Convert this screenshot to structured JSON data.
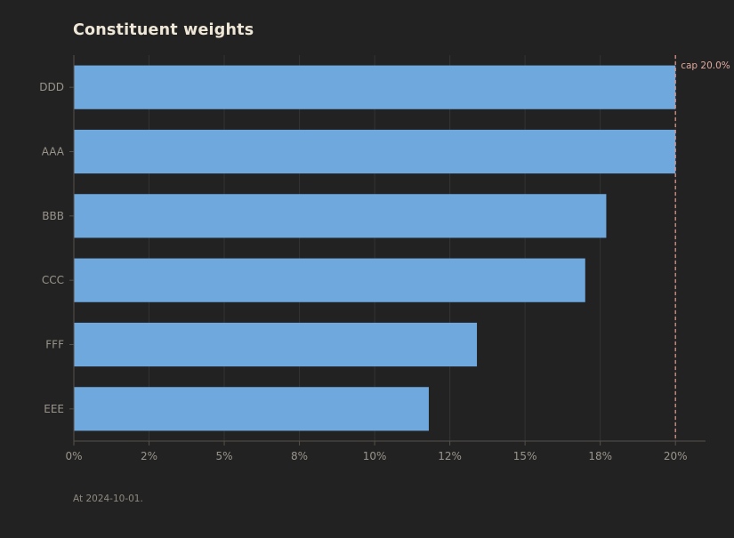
{
  "chart_data": {
    "type": "bar",
    "orientation": "horizontal",
    "title": "Constituent weights",
    "footnote": "At 2024-10-01.",
    "categories": [
      "DDD",
      "AAA",
      "BBB",
      "CCC",
      "FFF",
      "EEE"
    ],
    "values": [
      20.0,
      20.0,
      17.7,
      17.0,
      13.4,
      11.8
    ],
    "xlim": [
      0,
      21
    ],
    "x_ticks": [
      0,
      2.5,
      5,
      7.5,
      10,
      12.5,
      15,
      17.5,
      20
    ],
    "x_tick_labels": [
      "0%",
      "2%",
      "5%",
      "8%",
      "10%",
      "12%",
      "15%",
      "18%",
      "20%"
    ],
    "xlabel": "",
    "ylabel": "",
    "grid": "vertical",
    "cap": {
      "value": 20.0,
      "label": "cap 20.0%"
    },
    "colors": {
      "background": "#222222",
      "bar": "#6fa8dc",
      "grid": "#333333",
      "axis": "#555049",
      "cap_line": "#d9978b",
      "title": "#eee6d6",
      "tick_text": "#9a958c"
    }
  }
}
